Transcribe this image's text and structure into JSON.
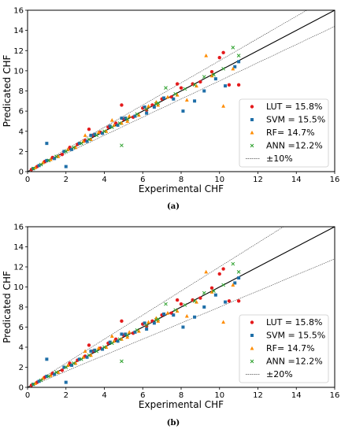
{
  "chart_data": [
    {
      "type": "scatter",
      "caption": "(a)",
      "xlabel": "Experimental CHF",
      "ylabel": "Predicated CHF",
      "xlim": [
        0,
        16
      ],
      "ylim": [
        0,
        16
      ],
      "xticks": [
        0,
        2,
        4,
        6,
        8,
        10,
        12,
        14,
        16
      ],
      "yticks": [
        0,
        2,
        4,
        6,
        8,
        10,
        12,
        14,
        16
      ],
      "grid": false,
      "legend_position": "lower-right",
      "band_label": "±10%",
      "band": 0.1,
      "series": [
        {
          "name": "LUT = 15.8%",
          "marker": "circle",
          "color": "#e41a1c",
          "x": [
            0.2,
            0.5,
            0.9,
            1.3,
            1.8,
            2.2,
            2.6,
            3.0,
            3.4,
            3.8,
            4.2,
            4.6,
            5.0,
            5.5,
            6.0,
            6.5,
            7.0,
            7.5,
            8.0,
            8.6,
            9.0,
            9.6,
            10.0,
            10.5,
            11.0,
            3.2,
            4.9,
            6.2,
            7.8,
            10.2
          ],
          "y": [
            0.2,
            0.5,
            1.0,
            1.4,
            1.7,
            2.4,
            2.7,
            3.1,
            3.6,
            3.9,
            4.4,
            4.8,
            5.2,
            5.4,
            6.3,
            6.6,
            7.2,
            7.4,
            8.3,
            8.7,
            8.9,
            9.9,
            11.3,
            8.6,
            8.6,
            4.2,
            6.6,
            6.1,
            8.7,
            11.8
          ]
        },
        {
          "name": "SVM = 15.5%",
          "marker": "square",
          "color": "#1f6fa8",
          "x": [
            0.3,
            0.6,
            1.0,
            1.4,
            1.9,
            2.3,
            2.7,
            3.1,
            3.5,
            3.9,
            4.3,
            4.7,
            5.1,
            5.6,
            6.1,
            6.6,
            7.1,
            7.6,
            8.1,
            8.7,
            9.2,
            9.8,
            10.3,
            10.8,
            11.0,
            1.0,
            2.0,
            3.3,
            4.9,
            6.2
          ],
          "y": [
            0.3,
            0.6,
            1.1,
            1.3,
            2.0,
            2.2,
            2.8,
            3.0,
            3.7,
            3.8,
            4.5,
            4.6,
            5.3,
            5.5,
            6.4,
            6.4,
            7.3,
            7.2,
            6.0,
            7.0,
            8.0,
            9.2,
            8.5,
            10.4,
            10.9,
            2.8,
            0.5,
            3.6,
            5.3,
            5.8
          ]
        },
        {
          "name": "RF= 14.7%",
          "marker": "triangle",
          "color": "#ff8c00",
          "x": [
            0.4,
            0.8,
            1.2,
            1.6,
            2.1,
            2.5,
            2.9,
            3.3,
            3.7,
            4.1,
            4.5,
            4.9,
            5.3,
            5.8,
            6.3,
            6.8,
            7.3,
            7.8,
            8.3,
            8.8,
            9.3,
            9.6,
            10.2,
            10.7,
            3.0,
            4.4,
            5.2,
            6.7
          ],
          "y": [
            0.4,
            0.9,
            1.2,
            1.5,
            2.2,
            2.4,
            3.0,
            3.2,
            3.9,
            4.0,
            4.6,
            4.8,
            5.5,
            5.6,
            6.5,
            6.6,
            7.4,
            7.6,
            7.1,
            8.5,
            11.5,
            9.5,
            6.5,
            10.2,
            3.6,
            5.1,
            5.0,
            6.9
          ]
        },
        {
          "name": "ANN =12.2%",
          "marker": "cross",
          "color": "#2ca02c",
          "x": [
            0.3,
            0.7,
            1.1,
            1.5,
            2.0,
            2.4,
            2.8,
            3.2,
            3.6,
            4.0,
            4.4,
            4.8,
            5.2,
            5.7,
            6.2,
            6.7,
            7.2,
            7.7,
            8.2,
            8.7,
            9.2,
            9.7,
            10.2,
            10.7,
            11.0,
            4.9,
            6.8
          ],
          "y": [
            0.3,
            0.7,
            1.1,
            1.5,
            2.0,
            2.4,
            2.8,
            3.2,
            3.6,
            4.0,
            4.4,
            4.8,
            5.2,
            5.7,
            6.2,
            6.7,
            8.3,
            7.7,
            8.2,
            8.6,
            9.4,
            9.6,
            10.2,
            12.3,
            11.5,
            2.6,
            6.8
          ]
        }
      ]
    },
    {
      "type": "scatter",
      "caption": "(b)",
      "xlabel": "Experimental CHF",
      "ylabel": "Predicated CHF",
      "xlim": [
        0,
        16
      ],
      "ylim": [
        0,
        16
      ],
      "xticks": [
        0,
        2,
        4,
        6,
        8,
        10,
        12,
        14,
        16
      ],
      "yticks": [
        0,
        2,
        4,
        6,
        8,
        10,
        12,
        14,
        16
      ],
      "grid": false,
      "legend_position": "lower-right",
      "band_label": "±20%",
      "band": 0.2,
      "series": [
        {
          "name": "LUT = 15.8%",
          "marker": "circle",
          "color": "#e41a1c",
          "x": [
            0.2,
            0.5,
            0.9,
            1.3,
            1.8,
            2.2,
            2.6,
            3.0,
            3.4,
            3.8,
            4.2,
            4.6,
            5.0,
            5.5,
            6.0,
            6.5,
            7.0,
            7.5,
            8.0,
            8.6,
            9.0,
            9.6,
            10.0,
            10.5,
            11.0,
            3.2,
            4.9,
            6.2,
            7.8,
            10.2
          ],
          "y": [
            0.2,
            0.5,
            1.0,
            1.4,
            1.7,
            2.4,
            2.7,
            3.1,
            3.6,
            3.9,
            4.4,
            4.8,
            5.2,
            5.4,
            6.3,
            6.6,
            7.2,
            7.4,
            8.3,
            8.7,
            8.9,
            9.9,
            11.3,
            8.6,
            8.6,
            4.2,
            6.6,
            6.1,
            8.7,
            11.8
          ]
        },
        {
          "name": "SVM = 15.5%",
          "marker": "square",
          "color": "#1f6fa8",
          "x": [
            0.3,
            0.6,
            1.0,
            1.4,
            1.9,
            2.3,
            2.7,
            3.1,
            3.5,
            3.9,
            4.3,
            4.7,
            5.1,
            5.6,
            6.1,
            6.6,
            7.1,
            7.6,
            8.1,
            8.7,
            9.2,
            9.8,
            10.3,
            10.8,
            11.0,
            1.0,
            2.0,
            3.3,
            4.9,
            6.2
          ],
          "y": [
            0.3,
            0.6,
            1.1,
            1.3,
            2.0,
            2.2,
            2.8,
            3.0,
            3.7,
            3.8,
            4.5,
            4.6,
            5.3,
            5.5,
            6.4,
            6.4,
            7.3,
            7.2,
            6.0,
            7.0,
            8.0,
            9.2,
            8.5,
            10.4,
            10.9,
            2.8,
            0.5,
            3.6,
            5.3,
            5.8
          ]
        },
        {
          "name": "RF= 14.7%",
          "marker": "triangle",
          "color": "#ff8c00",
          "x": [
            0.4,
            0.8,
            1.2,
            1.6,
            2.1,
            2.5,
            2.9,
            3.3,
            3.7,
            4.1,
            4.5,
            4.9,
            5.3,
            5.8,
            6.3,
            6.8,
            7.3,
            7.8,
            8.3,
            8.8,
            9.3,
            9.6,
            10.2,
            10.7,
            3.0,
            4.4,
            5.2,
            6.7
          ],
          "y": [
            0.4,
            0.9,
            1.2,
            1.5,
            2.2,
            2.4,
            3.0,
            3.2,
            3.9,
            4.0,
            4.6,
            4.8,
            5.5,
            5.6,
            6.5,
            6.6,
            7.4,
            7.6,
            7.1,
            8.5,
            11.5,
            9.5,
            6.5,
            10.2,
            3.6,
            5.1,
            5.0,
            6.9
          ]
        },
        {
          "name": "ANN =12.2%",
          "marker": "cross",
          "color": "#2ca02c",
          "x": [
            0.3,
            0.7,
            1.1,
            1.5,
            2.0,
            2.4,
            2.8,
            3.2,
            3.6,
            4.0,
            4.4,
            4.8,
            5.2,
            5.7,
            6.2,
            6.7,
            7.2,
            7.7,
            8.2,
            8.7,
            9.2,
            9.7,
            10.2,
            10.7,
            11.0,
            4.9,
            6.8
          ],
          "y": [
            0.3,
            0.7,
            1.1,
            1.5,
            2.0,
            2.4,
            2.8,
            3.2,
            3.6,
            4.0,
            4.4,
            4.8,
            5.2,
            5.7,
            6.2,
            6.7,
            8.3,
            7.7,
            8.2,
            8.6,
            9.4,
            9.6,
            10.2,
            12.3,
            11.5,
            2.6,
            6.8
          ]
        }
      ]
    }
  ]
}
